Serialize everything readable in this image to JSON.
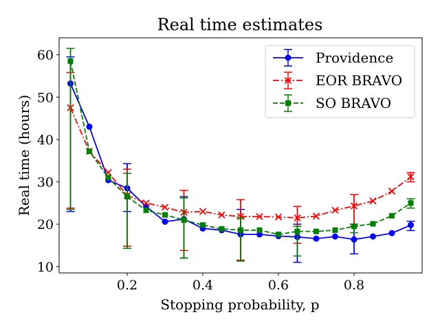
{
  "chart_data": {
    "type": "line",
    "title": "Real time estimates",
    "xlabel": "Stopping probability, p",
    "ylabel": "Real time (hours)",
    "xlim": [
      0.02,
      0.98
    ],
    "ylim": [
      8.5,
      64
    ],
    "xticks": [
      0.2,
      0.4,
      0.6,
      0.8
    ],
    "xtick_labels": [
      "0.2",
      "0.4",
      "0.6",
      "0.8"
    ],
    "yticks": [
      10,
      20,
      30,
      40,
      50,
      60
    ],
    "ytick_labels": [
      "10",
      "20",
      "30",
      "40",
      "50",
      "60"
    ],
    "grid": false,
    "legend_position": "top-right",
    "x": [
      0.05,
      0.1,
      0.15,
      0.2,
      0.25,
      0.3,
      0.35,
      0.4,
      0.45,
      0.5,
      0.55,
      0.6,
      0.65,
      0.7,
      0.75,
      0.8,
      0.85,
      0.9,
      0.95
    ],
    "series": [
      {
        "name": "Providence",
        "color": "#0000ff",
        "marker": "circle",
        "linestyle": "solid",
        "values": [
          53.2,
          43.0,
          30.4,
          28.5,
          24.2,
          20.6,
          21.2,
          19.0,
          18.6,
          17.6,
          17.6,
          17.2,
          17.0,
          16.6,
          17.1,
          16.4,
          17.1,
          17.9,
          19.8
        ],
        "error_x": [
          0.05,
          0.2,
          0.35,
          0.5,
          0.65,
          0.8,
          0.95
        ],
        "error_low": [
          23.0,
          23.0,
          12.0,
          11.5,
          11.0,
          13.0,
          18.5
        ],
        "error_high": [
          59.5,
          34.3,
          26.5,
          23.5,
          20.0,
          20.0,
          20.7
        ]
      },
      {
        "name": "EOR BRAVO",
        "color": "#ff0000",
        "marker": "x",
        "linestyle": "dashdot",
        "values": [
          47.5,
          37.2,
          32.2,
          26.8,
          25.0,
          24.0,
          22.8,
          23.0,
          22.2,
          21.8,
          21.8,
          21.7,
          21.5,
          21.9,
          23.3,
          24.3,
          25.5,
          27.8,
          31.2
        ],
        "error_x": [
          0.05,
          0.2,
          0.35,
          0.5,
          0.65,
          0.8,
          0.95
        ],
        "error_low": [
          23.8,
          14.8,
          13.8,
          11.5,
          15.5,
          19.5,
          30.0
        ],
        "error_high": [
          55.8,
          33.0,
          28.0,
          25.8,
          24.2,
          27.0,
          32.2
        ]
      },
      {
        "name": "SO BRAVO",
        "color": "#008000",
        "marker": "square",
        "linestyle": "dashed",
        "values": [
          58.5,
          37.2,
          31.0,
          26.5,
          23.3,
          22.2,
          21.0,
          19.8,
          18.9,
          18.6,
          18.6,
          17.6,
          18.3,
          18.3,
          18.6,
          19.5,
          20.1,
          22.0,
          25.0
        ],
        "error_x": [
          0.05,
          0.2,
          0.35,
          0.5,
          0.65,
          0.8,
          0.95
        ],
        "error_low": [
          23.5,
          14.3,
          12.0,
          11.3,
          12.5,
          18.0,
          23.8
        ],
        "error_high": [
          61.5,
          32.0,
          26.2,
          21.5,
          19.5,
          20.0,
          26.0
        ]
      }
    ]
  }
}
